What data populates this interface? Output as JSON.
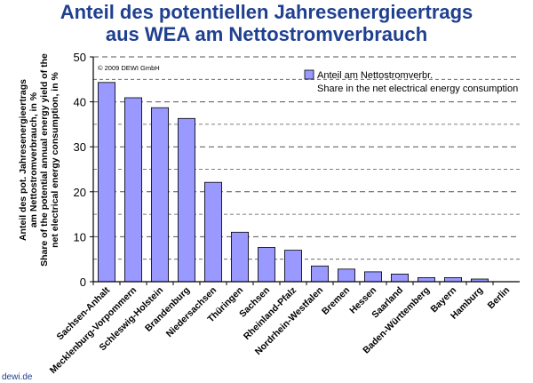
{
  "title_line1": "Anteil des potentiellen Jahresenergieertrags",
  "title_line2": "aus WEA am Nettostromverbrauch",
  "copyright": "© 2009 DEWI GmbH",
  "source": "dewi.de",
  "chart_data": {
    "type": "bar",
    "categories": [
      "Sachsen-Anhalt",
      "Mecklenburg-Vorpommern",
      "Schleswig-Holstein",
      "Brandenburg",
      "Niedersachsen",
      "Thüringen",
      "Sachsen",
      "Rheinland-Pfalz",
      "Nordrhein-Westfalen",
      "Bremen",
      "Hessen",
      "Saarland",
      "Baden-Württemberg",
      "Bayern",
      "Hamburg",
      "Berlin"
    ],
    "series": [
      {
        "name": "Anteil am Nettostromverbr.",
        "name_en": "Share in the net electrical energy consumption",
        "values": [
          44.3,
          40.9,
          38.7,
          36.3,
          22.1,
          11.0,
          7.6,
          7.0,
          3.5,
          2.8,
          2.2,
          1.7,
          0.9,
          0.9,
          0.6,
          0.0
        ]
      }
    ],
    "ylabel_lines": [
      "Anteil des pot. Jahresenergieertrags",
      "am Nettostromverbrauch, in %",
      "Share of the potential annual energy yield of the",
      "net electrical energy consumption, in %"
    ],
    "ylim": [
      0,
      50
    ],
    "yticks": [
      0,
      10,
      20,
      30,
      40,
      50
    ],
    "grid": "dashed horizontal every 5",
    "legend_position": "top-right",
    "colors": {
      "bar_fill": "#9999ff",
      "bar_stroke": "#000000",
      "title": "#1f3f8f"
    }
  }
}
